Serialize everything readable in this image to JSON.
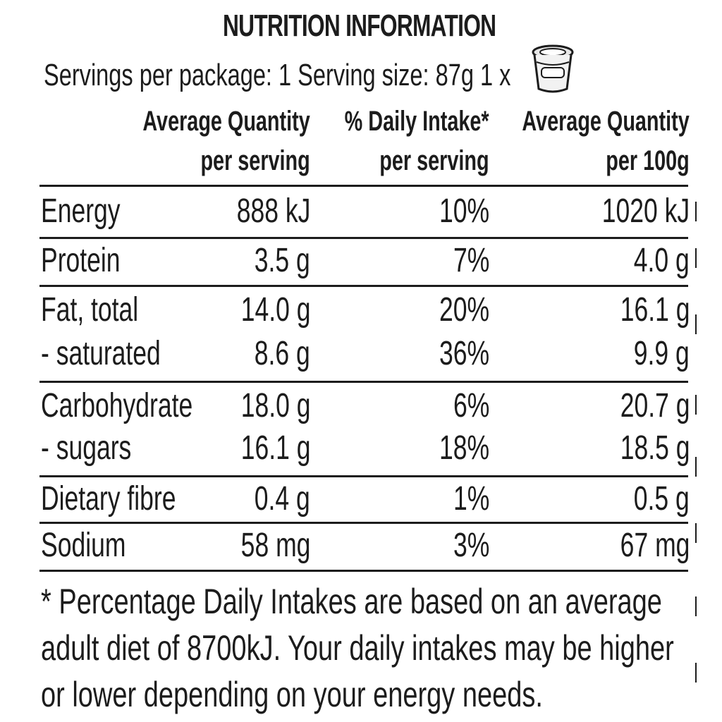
{
  "label": {
    "title": "NUTRITION INFORMATION",
    "servings_line": "Servings per package: 1 Serving size: 87g 1 x",
    "serving_icon": "yoghurt-cup-icon",
    "columns": [
      {
        "line1": "Average Quantity",
        "line2": "per serving"
      },
      {
        "line1": "% Daily Intake*",
        "line2": "per serving"
      },
      {
        "line1": "Average Quantity",
        "line2": "per 100g"
      }
    ],
    "rows": [
      {
        "name": "Energy",
        "per_serving": "888 kJ",
        "daily_intake": "10%",
        "per_100g": "1020 kJ"
      },
      {
        "name": "Protein",
        "per_serving": "3.5 g",
        "daily_intake": "7%",
        "per_100g": "4.0 g"
      },
      {
        "name": "Fat, total",
        "per_serving": "14.0 g",
        "daily_intake": "20%",
        "per_100g": "16.1 g"
      },
      {
        "name": "- saturated",
        "per_serving": "8.6 g",
        "daily_intake": "36%",
        "per_100g": "9.9 g"
      },
      {
        "name": "Carbohydrate",
        "per_serving": "18.0 g",
        "daily_intake": "6%",
        "per_100g": "20.7 g"
      },
      {
        "name": "- sugars",
        "per_serving": "16.1 g",
        "daily_intake": "18%",
        "per_100g": "18.5 g"
      },
      {
        "name": "Dietary fibre",
        "per_serving": "0.4 g",
        "daily_intake": "1%",
        "per_100g": "0.5 g"
      },
      {
        "name": "Sodium",
        "per_serving": "58 mg",
        "daily_intake": "3%",
        "per_100g": "67 mg"
      }
    ],
    "footnote": [
      "* Percentage Daily Intakes are based on an average",
      "adult diet of 8700kJ. Your daily intakes may be higher",
      "or lower depending on your energy needs."
    ]
  },
  "colors": {
    "ink": "#1c1c1c",
    "background": "#ffffff"
  }
}
